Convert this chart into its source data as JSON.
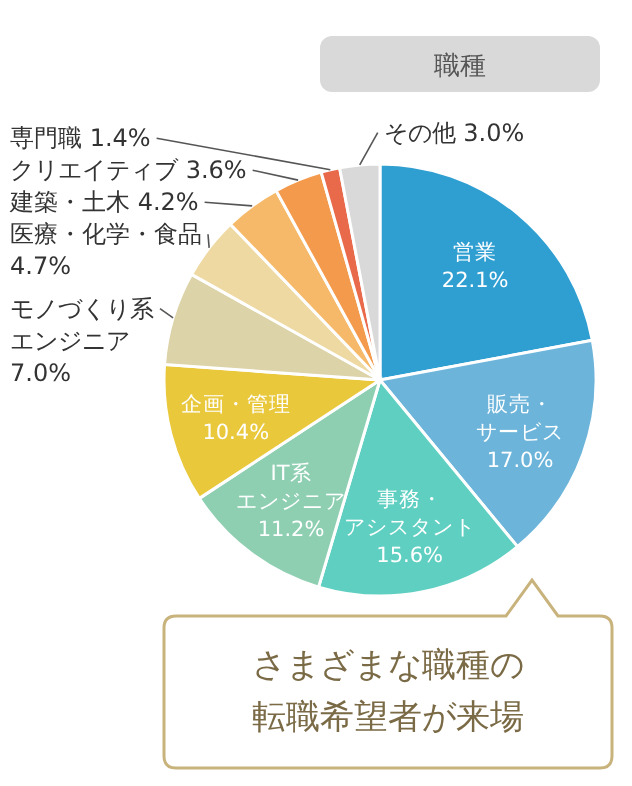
{
  "chart_data": {
    "type": "pie",
    "title": "職種",
    "categories": [
      "営業",
      "販売・サービス",
      "事務・アシスタント",
      "IT系エンジニア",
      "企画・管理",
      "モノづくり系エンジニア",
      "医療・化学・食品",
      "建築・土木",
      "クリエイティブ",
      "専門職",
      "その他"
    ],
    "values": [
      22.1,
      17.0,
      15.6,
      11.2,
      10.4,
      7.0,
      4.7,
      4.2,
      3.6,
      1.4,
      3.0
    ],
    "colors": [
      "#2f9fd2",
      "#6cb4da",
      "#5fcfc2",
      "#8ecfb2",
      "#e9c83c",
      "#dcd3a8",
      "#efd9a2",
      "#f6b96a",
      "#f39a4c",
      "#e96a4b",
      "#d9d9d9"
    ],
    "value_labels": [
      "22.1%",
      "17.0%",
      "15.6%",
      "11.2%",
      "10.4%",
      "7.0%",
      "4.7%",
      "4.2%",
      "3.6%",
      "1.4%",
      "3.0%"
    ],
    "annotations": [
      "さまざまな職種の転職希望者が来場"
    ]
  }
}
